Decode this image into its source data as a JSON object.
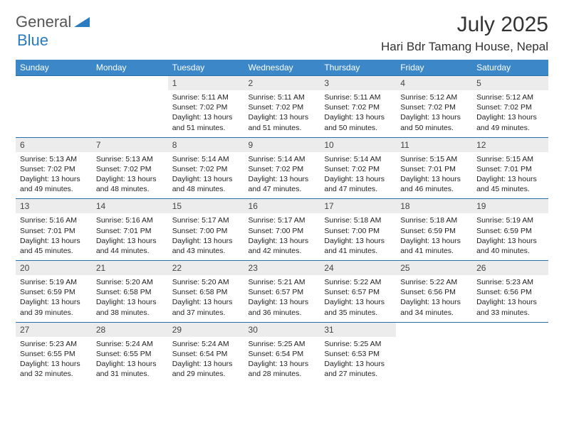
{
  "brand": {
    "part1": "General",
    "part2": "Blue"
  },
  "title": "July 2025",
  "location": "Hari Bdr Tamang House, Nepal",
  "colors": {
    "header_bg": "#3b87c8",
    "header_text": "#ffffff",
    "daynum_bg": "#ececec",
    "rule": "#2a6ea8",
    "brand_accent": "#2a7bbf"
  },
  "weekdays": [
    "Sunday",
    "Monday",
    "Tuesday",
    "Wednesday",
    "Thursday",
    "Friday",
    "Saturday"
  ],
  "weeks": [
    [
      null,
      null,
      {
        "n": "1",
        "sr": "5:11 AM",
        "ss": "7:02 PM",
        "dl": "13 hours and 51 minutes."
      },
      {
        "n": "2",
        "sr": "5:11 AM",
        "ss": "7:02 PM",
        "dl": "13 hours and 51 minutes."
      },
      {
        "n": "3",
        "sr": "5:11 AM",
        "ss": "7:02 PM",
        "dl": "13 hours and 50 minutes."
      },
      {
        "n": "4",
        "sr": "5:12 AM",
        "ss": "7:02 PM",
        "dl": "13 hours and 50 minutes."
      },
      {
        "n": "5",
        "sr": "5:12 AM",
        "ss": "7:02 PM",
        "dl": "13 hours and 49 minutes."
      }
    ],
    [
      {
        "n": "6",
        "sr": "5:13 AM",
        "ss": "7:02 PM",
        "dl": "13 hours and 49 minutes."
      },
      {
        "n": "7",
        "sr": "5:13 AM",
        "ss": "7:02 PM",
        "dl": "13 hours and 48 minutes."
      },
      {
        "n": "8",
        "sr": "5:14 AM",
        "ss": "7:02 PM",
        "dl": "13 hours and 48 minutes."
      },
      {
        "n": "9",
        "sr": "5:14 AM",
        "ss": "7:02 PM",
        "dl": "13 hours and 47 minutes."
      },
      {
        "n": "10",
        "sr": "5:14 AM",
        "ss": "7:02 PM",
        "dl": "13 hours and 47 minutes."
      },
      {
        "n": "11",
        "sr": "5:15 AM",
        "ss": "7:01 PM",
        "dl": "13 hours and 46 minutes."
      },
      {
        "n": "12",
        "sr": "5:15 AM",
        "ss": "7:01 PM",
        "dl": "13 hours and 45 minutes."
      }
    ],
    [
      {
        "n": "13",
        "sr": "5:16 AM",
        "ss": "7:01 PM",
        "dl": "13 hours and 45 minutes."
      },
      {
        "n": "14",
        "sr": "5:16 AM",
        "ss": "7:01 PM",
        "dl": "13 hours and 44 minutes."
      },
      {
        "n": "15",
        "sr": "5:17 AM",
        "ss": "7:00 PM",
        "dl": "13 hours and 43 minutes."
      },
      {
        "n": "16",
        "sr": "5:17 AM",
        "ss": "7:00 PM",
        "dl": "13 hours and 42 minutes."
      },
      {
        "n": "17",
        "sr": "5:18 AM",
        "ss": "7:00 PM",
        "dl": "13 hours and 41 minutes."
      },
      {
        "n": "18",
        "sr": "5:18 AM",
        "ss": "6:59 PM",
        "dl": "13 hours and 41 minutes."
      },
      {
        "n": "19",
        "sr": "5:19 AM",
        "ss": "6:59 PM",
        "dl": "13 hours and 40 minutes."
      }
    ],
    [
      {
        "n": "20",
        "sr": "5:19 AM",
        "ss": "6:59 PM",
        "dl": "13 hours and 39 minutes."
      },
      {
        "n": "21",
        "sr": "5:20 AM",
        "ss": "6:58 PM",
        "dl": "13 hours and 38 minutes."
      },
      {
        "n": "22",
        "sr": "5:20 AM",
        "ss": "6:58 PM",
        "dl": "13 hours and 37 minutes."
      },
      {
        "n": "23",
        "sr": "5:21 AM",
        "ss": "6:57 PM",
        "dl": "13 hours and 36 minutes."
      },
      {
        "n": "24",
        "sr": "5:22 AM",
        "ss": "6:57 PM",
        "dl": "13 hours and 35 minutes."
      },
      {
        "n": "25",
        "sr": "5:22 AM",
        "ss": "6:56 PM",
        "dl": "13 hours and 34 minutes."
      },
      {
        "n": "26",
        "sr": "5:23 AM",
        "ss": "6:56 PM",
        "dl": "13 hours and 33 minutes."
      }
    ],
    [
      {
        "n": "27",
        "sr": "5:23 AM",
        "ss": "6:55 PM",
        "dl": "13 hours and 32 minutes."
      },
      {
        "n": "28",
        "sr": "5:24 AM",
        "ss": "6:55 PM",
        "dl": "13 hours and 31 minutes."
      },
      {
        "n": "29",
        "sr": "5:24 AM",
        "ss": "6:54 PM",
        "dl": "13 hours and 29 minutes."
      },
      {
        "n": "30",
        "sr": "5:25 AM",
        "ss": "6:54 PM",
        "dl": "13 hours and 28 minutes."
      },
      {
        "n": "31",
        "sr": "5:25 AM",
        "ss": "6:53 PM",
        "dl": "13 hours and 27 minutes."
      },
      null,
      null
    ]
  ],
  "labels": {
    "sunrise": "Sunrise:",
    "sunset": "Sunset:",
    "daylight": "Daylight:"
  }
}
